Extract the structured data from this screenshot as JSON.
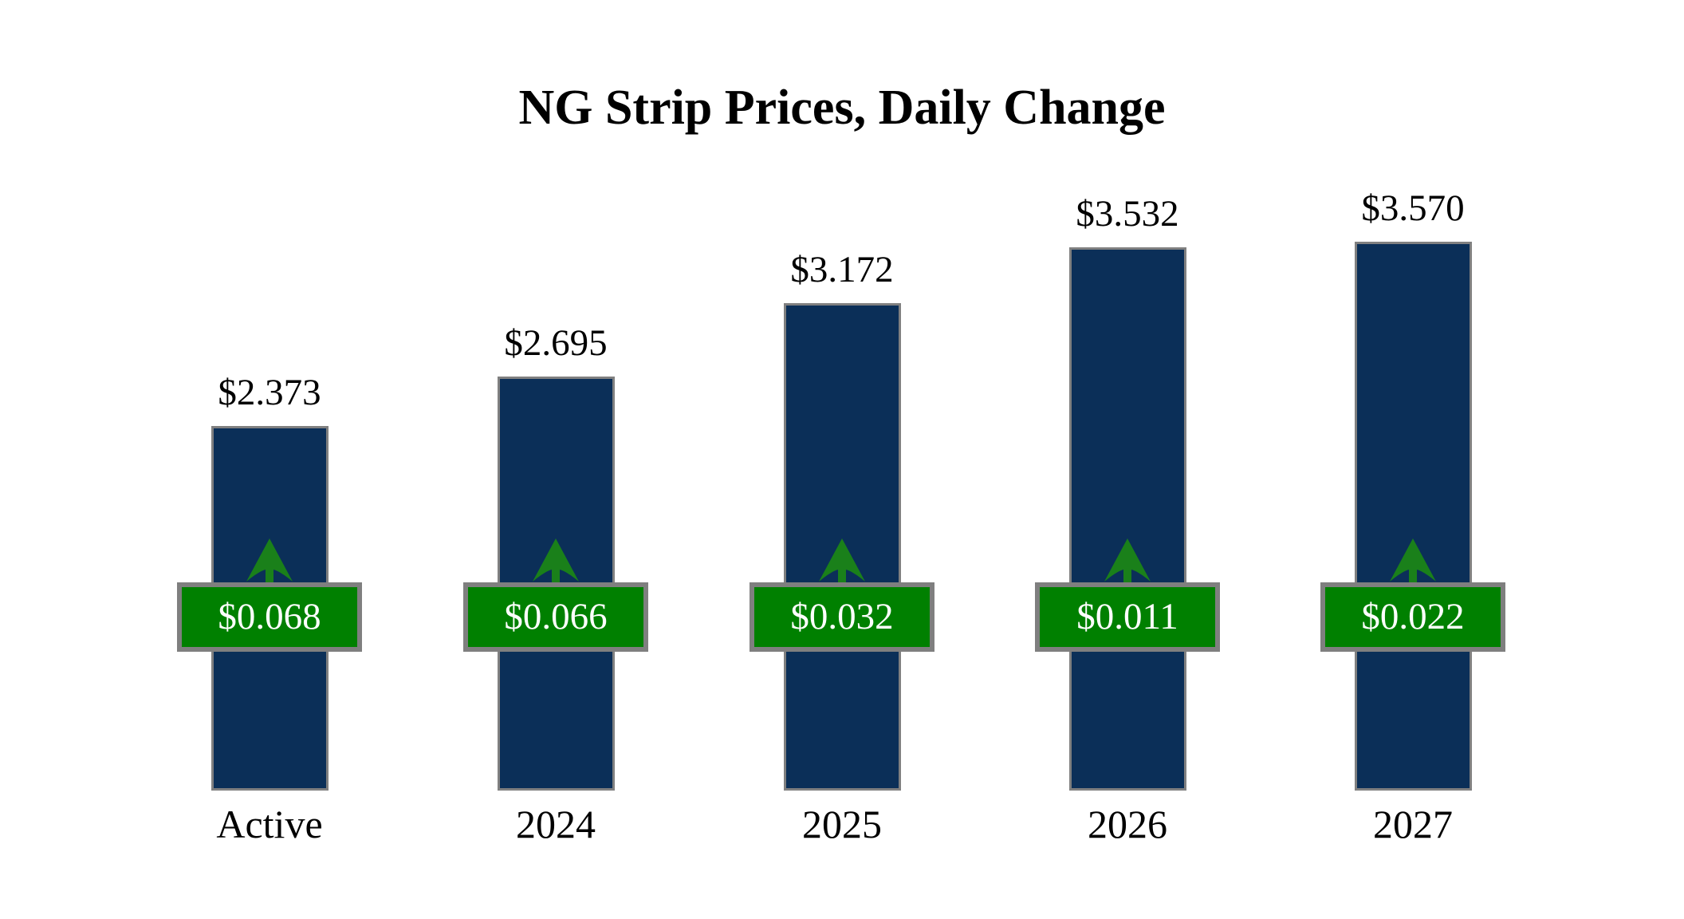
{
  "chart_data": {
    "type": "bar",
    "title": "NG Strip Prices, Daily Change",
    "categories": [
      "Active",
      "2024",
      "2025",
      "2026",
      "2027"
    ],
    "series": [
      {
        "name": "Strip Price",
        "values": [
          2.373,
          2.695,
          3.172,
          3.532,
          3.57
        ],
        "labels": [
          "$2.373",
          "$2.695",
          "$3.172",
          "$3.532",
          "$3.570"
        ]
      },
      {
        "name": "Daily Change",
        "values": [
          0.068,
          0.066,
          0.032,
          0.011,
          0.022
        ],
        "labels": [
          "$0.068",
          "$0.066",
          "$0.032",
          "$0.011",
          "$0.022"
        ],
        "direction": "up"
      }
    ],
    "ylim": [
      0,
      3.8
    ],
    "grid": false,
    "legend": "none",
    "colors": {
      "background": "#FFFFFF",
      "bar_fill": "#0B2F58",
      "bar_border": "#808080",
      "badge_fill": "#008000",
      "badge_border": "#7F7F7F",
      "badge_text": "#FFFFFF",
      "arrow": "#1A801A",
      "value_text": "#000000",
      "category_text": "#000000"
    }
  }
}
